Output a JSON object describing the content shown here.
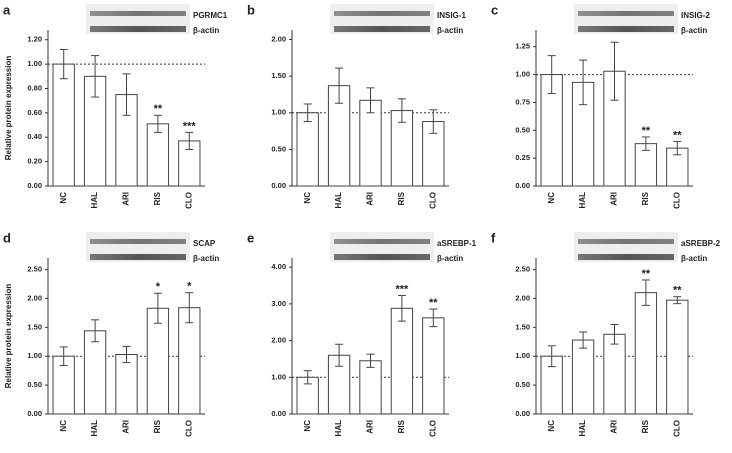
{
  "chart_data": [
    {
      "type": "bar",
      "panel_label": "a",
      "protein": "PGRMC1",
      "loading_control": "β-actin",
      "y_label": "Relative protein expression",
      "categories": [
        "NC",
        "HAL",
        "ARI",
        "RIS",
        "CLO"
      ],
      "values": [
        1.0,
        0.9,
        0.75,
        0.51,
        0.37
      ],
      "errors": [
        0.12,
        0.17,
        0.17,
        0.07,
        0.07
      ],
      "annotations": [
        null,
        null,
        null,
        "**",
        "***"
      ],
      "reference_line": 1,
      "ylim": [
        0,
        1.28
      ],
      "yticks": [
        {
          "value": 0,
          "label": "0.00"
        },
        {
          "value": 0.2,
          "label": "0.20"
        },
        {
          "value": 0.4,
          "label": "0.40"
        },
        {
          "value": 0.6,
          "label": "0.60"
        },
        {
          "value": 0.8,
          "label": "0.80"
        },
        {
          "value": 1.0,
          "label": "1.00"
        },
        {
          "value": 1.2,
          "label": "1.20"
        }
      ]
    },
    {
      "type": "bar",
      "panel_label": "b",
      "protein": "INSIG-1",
      "loading_control": "β-actin",
      "categories": [
        "NC",
        "HAL",
        "ARI",
        "RIS",
        "CLO"
      ],
      "values": [
        1.0,
        1.37,
        1.17,
        1.03,
        0.88
      ],
      "errors": [
        0.12,
        0.24,
        0.17,
        0.16,
        0.16
      ],
      "annotations": [
        null,
        null,
        null,
        null,
        null
      ],
      "reference_line": 1,
      "ylim": [
        0,
        2.13
      ],
      "yticks": [
        {
          "value": 0,
          "label": "0.00"
        },
        {
          "value": 0.5,
          "label": "0.50"
        },
        {
          "value": 1.0,
          "label": "1.00"
        },
        {
          "value": 1.5,
          "label": "1.50"
        },
        {
          "value": 2.0,
          "label": "2.00"
        }
      ]
    },
    {
      "type": "bar",
      "panel_label": "c",
      "protein": "INSIG-2",
      "loading_control": "β-actin",
      "categories": [
        "NC",
        "HAL",
        "ARI",
        "RIS",
        "CLO"
      ],
      "values": [
        1.0,
        0.93,
        1.03,
        0.38,
        0.34
      ],
      "errors": [
        0.17,
        0.2,
        0.26,
        0.06,
        0.06
      ],
      "annotations": [
        null,
        null,
        null,
        "**",
        "**"
      ],
      "reference_line": 1,
      "ylim": [
        0,
        1.4
      ],
      "yticks": [
        {
          "value": 0,
          "label": "0.00"
        },
        {
          "value": 0.25,
          "label": "0.25"
        },
        {
          "value": 0.5,
          "label": "0.50"
        },
        {
          "value": 0.75,
          "label": "0.75"
        },
        {
          "value": 1.0,
          "label": "1.00"
        },
        {
          "value": 1.25,
          "label": "1.25"
        }
      ]
    },
    {
      "type": "bar",
      "panel_label": "d",
      "protein": "SCAP",
      "loading_control": "β-actin",
      "y_label": "Relative protein expression",
      "categories": [
        "NC",
        "HAL",
        "ARI",
        "RIS",
        "CLO"
      ],
      "values": [
        1.0,
        1.44,
        1.03,
        1.83,
        1.84
      ],
      "errors": [
        0.16,
        0.19,
        0.14,
        0.26,
        0.26
      ],
      "annotations": [
        null,
        null,
        null,
        "*",
        "*"
      ],
      "reference_line": 1,
      "ylim": [
        0,
        2.7
      ],
      "yticks": [
        {
          "value": 0,
          "label": "0.00"
        },
        {
          "value": 0.5,
          "label": "0.50"
        },
        {
          "value": 1.0,
          "label": "1.00"
        },
        {
          "value": 1.5,
          "label": "1.50"
        },
        {
          "value": 2.0,
          "label": "2.00"
        },
        {
          "value": 2.5,
          "label": "2.50"
        }
      ]
    },
    {
      "type": "bar",
      "panel_label": "e",
      "protein": "aSREBP-1",
      "loading_control": "β-actin",
      "categories": [
        "NC",
        "HAL",
        "ARI",
        "RIS",
        "CLO"
      ],
      "values": [
        1.0,
        1.6,
        1.45,
        2.88,
        2.62
      ],
      "errors": [
        0.18,
        0.3,
        0.18,
        0.35,
        0.24
      ],
      "annotations": [
        null,
        null,
        null,
        "***",
        "**"
      ],
      "reference_line": 1,
      "ylim": [
        0,
        4.25
      ],
      "yticks": [
        {
          "value": 0,
          "label": "0.00"
        },
        {
          "value": 1,
          "label": "1.00"
        },
        {
          "value": 2,
          "label": "2.00"
        },
        {
          "value": 3,
          "label": "3.00"
        },
        {
          "value": 4,
          "label": "4.00"
        }
      ]
    },
    {
      "type": "bar",
      "panel_label": "f",
      "protein": "aSREBP-2",
      "loading_control": "β-actin",
      "categories": [
        "NC",
        "HAL",
        "ARI",
        "RIS",
        "CLO"
      ],
      "values": [
        1.0,
        1.28,
        1.38,
        2.1,
        1.97
      ],
      "errors": [
        0.18,
        0.14,
        0.17,
        0.22,
        0.06
      ],
      "annotations": [
        null,
        null,
        null,
        "**",
        "**"
      ],
      "reference_line": 1,
      "ylim": [
        0,
        2.7
      ],
      "yticks": [
        {
          "value": 0,
          "label": "0.00"
        },
        {
          "value": 0.5,
          "label": "0.50"
        },
        {
          "value": 1.0,
          "label": "1.00"
        },
        {
          "value": 1.5,
          "label": "1.50"
        },
        {
          "value": 2.0,
          "label": "2.00"
        },
        {
          "value": 2.5,
          "label": "2.50"
        }
      ]
    }
  ]
}
